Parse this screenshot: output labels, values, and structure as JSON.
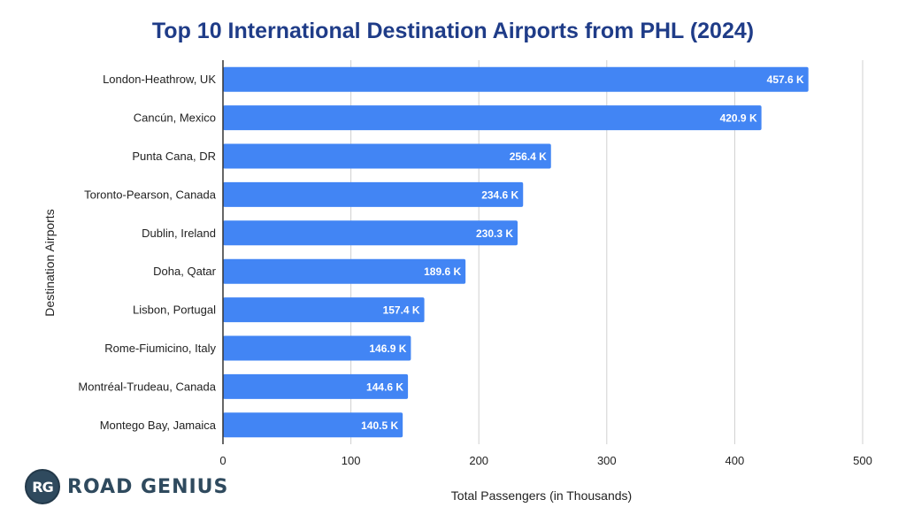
{
  "brand": {
    "badge": "RG",
    "name": "ROAD GENIUS"
  },
  "colors": {
    "bar": "#4285f4",
    "title": "#1f3c88",
    "grid": "#d0d0d0",
    "axis": "#333333"
  },
  "chart_data": {
    "type": "bar",
    "orientation": "horizontal",
    "title": "Top 10 International Destination Airports from PHL (2024)",
    "xlabel": "Total Passengers (in Thousands)",
    "ylabel": "Destination Airports",
    "xlim": [
      0,
      500
    ],
    "xticks": [
      0,
      100,
      200,
      300,
      400,
      500
    ],
    "grid": true,
    "categories": [
      "London-Heathrow, UK",
      "Cancún, Mexico",
      "Punta Cana, DR",
      "Toronto-Pearson, Canada",
      "Dublin, Ireland",
      "Doha, Qatar",
      "Lisbon, Portugal",
      "Rome-Fiumicino, Italy",
      "Montréal-Trudeau, Canada",
      "Montego Bay, Jamaica"
    ],
    "values": [
      457.6,
      420.9,
      256.4,
      234.6,
      230.3,
      189.6,
      157.4,
      146.9,
      144.6,
      140.5
    ],
    "data_labels": [
      "457.6 K",
      "420.9 K",
      "256.4 K",
      "234.6 K",
      "230.3 K",
      "189.6 K",
      "157.4 K",
      "146.9 K",
      "144.6 K",
      "140.5 K"
    ]
  }
}
